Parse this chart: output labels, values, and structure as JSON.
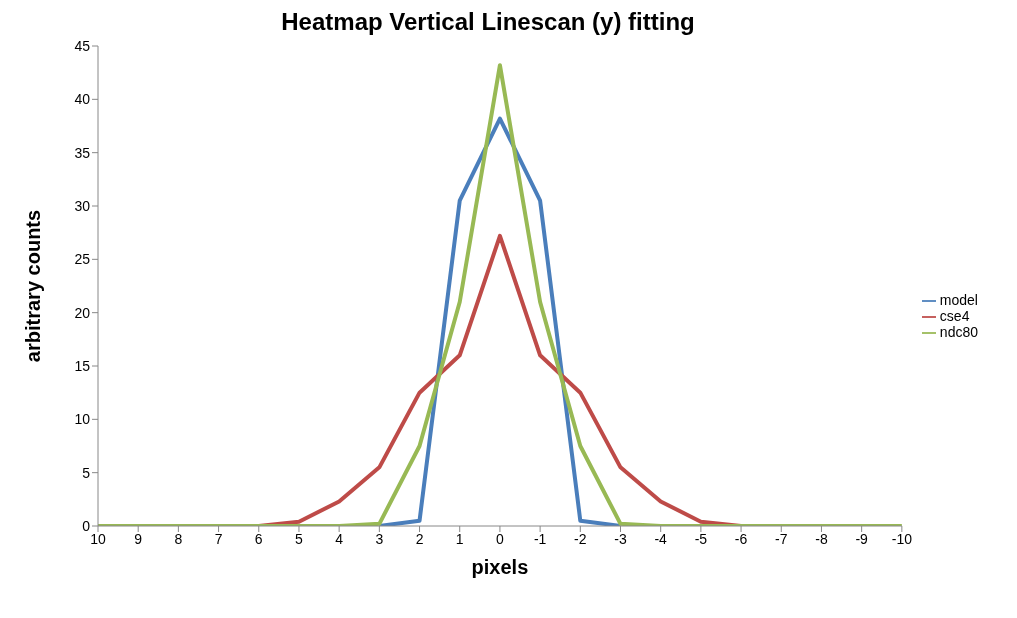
{
  "chart_data": {
    "type": "line",
    "title": "Heatmap Vertical Linescan (y) fitting",
    "xlabel": "pixels",
    "ylabel": "arbitrary counts",
    "categories": [
      "10",
      "9",
      "8",
      "7",
      "6",
      "5",
      "4",
      "3",
      "2",
      "1",
      "0",
      "-1",
      "-2",
      "-3",
      "-4",
      "-5",
      "-6",
      "-7",
      "-8",
      "-9",
      "-10"
    ],
    "series": [
      {
        "name": "model",
        "color": "#4a7ebb",
        "values": [
          null,
          null,
          null,
          null,
          null,
          null,
          null,
          0,
          0.5,
          30.5,
          38.2,
          30.5,
          0.5,
          0,
          null,
          null,
          null,
          null,
          null,
          null,
          null
        ]
      },
      {
        "name": "cse4",
        "color": "#be4b48",
        "values": [
          null,
          null,
          null,
          0,
          0,
          0.4,
          2.3,
          5.5,
          12.5,
          16,
          27.2,
          16,
          12.5,
          5.5,
          2.3,
          0.4,
          0,
          0,
          null,
          null,
          null
        ]
      },
      {
        "name": "ndc80",
        "color": "#98b954",
        "values": [
          0,
          0,
          0,
          0,
          0,
          0,
          0,
          0.2,
          7.5,
          21,
          43.2,
          21,
          7.5,
          0.2,
          0,
          0,
          0,
          0,
          0,
          0,
          0
        ]
      }
    ],
    "ylim": [
      0,
      45
    ],
    "yticks": [
      0,
      5,
      10,
      15,
      20,
      25,
      30,
      35,
      40,
      45
    ],
    "grid": false,
    "legend": "right",
    "marker": "none",
    "line_style": "solid"
  }
}
